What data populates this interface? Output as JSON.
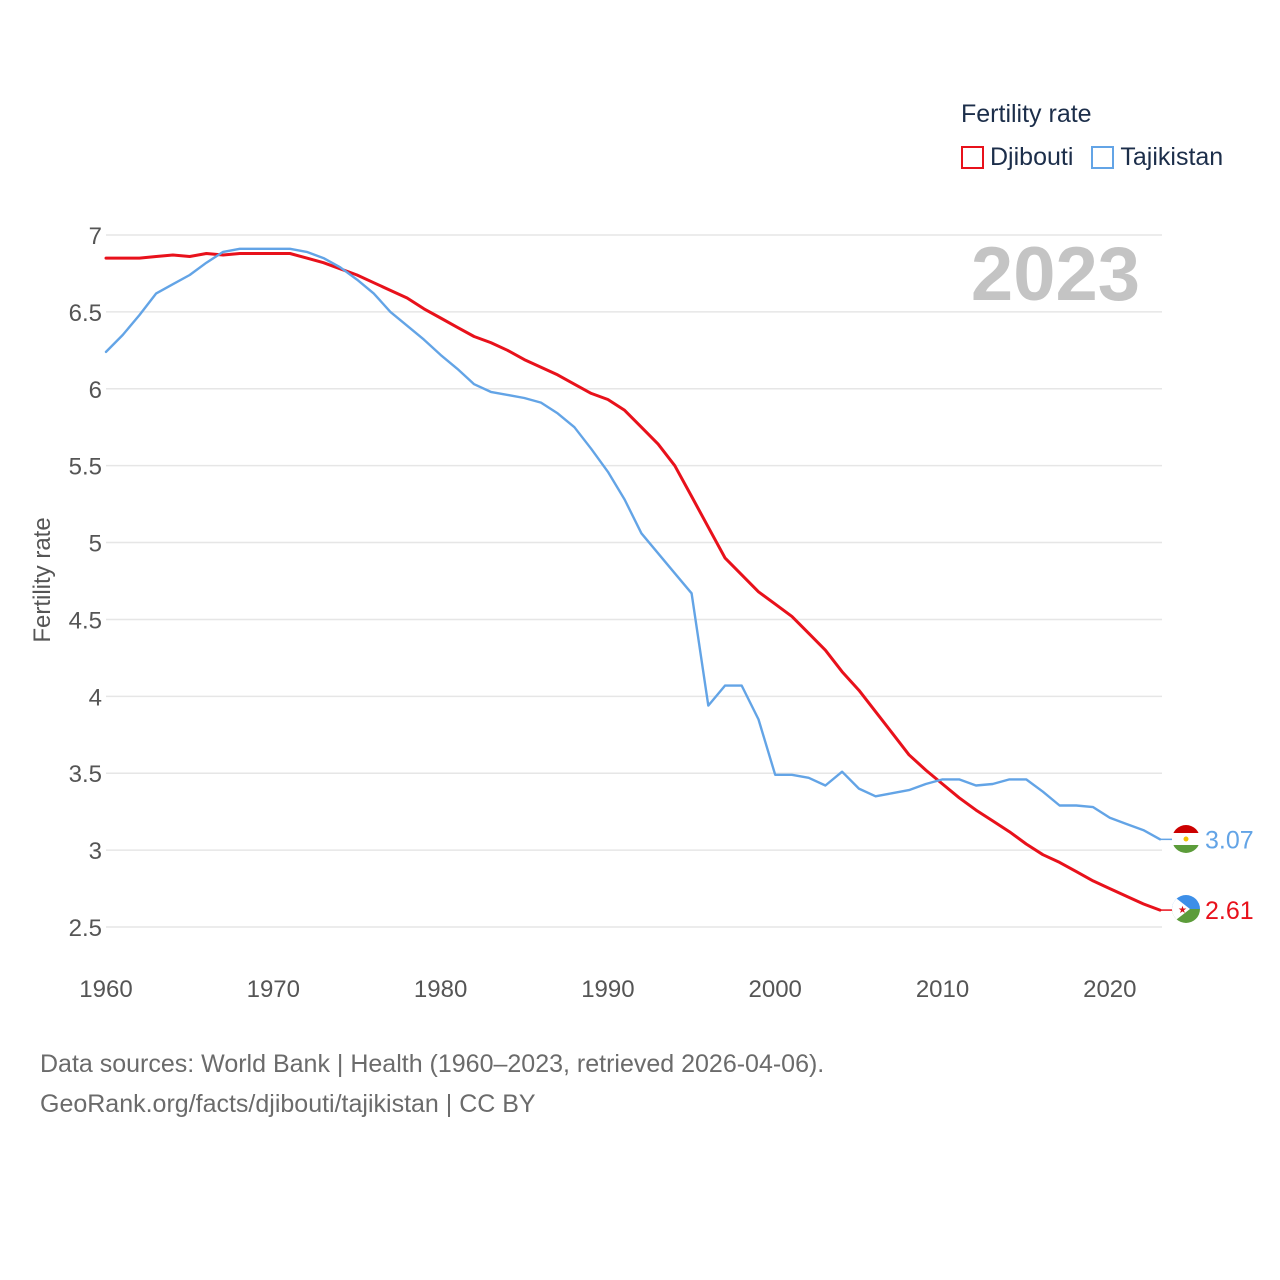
{
  "chart_data": {
    "type": "line",
    "legend_title": "Fertility rate",
    "ylabel": "Fertility rate",
    "xlabel": "",
    "year_label": "2023",
    "xlim": [
      1960,
      2023
    ],
    "ylim": [
      2.5,
      7
    ],
    "x_ticks": [
      1960,
      1970,
      1980,
      1990,
      2000,
      2010,
      2020
    ],
    "y_ticks": [
      2.5,
      3,
      3.5,
      4,
      4.5,
      5,
      5.5,
      6,
      6.5,
      7
    ],
    "x": [
      1960,
      1961,
      1962,
      1963,
      1964,
      1965,
      1966,
      1967,
      1968,
      1969,
      1970,
      1971,
      1972,
      1973,
      1974,
      1975,
      1976,
      1977,
      1978,
      1979,
      1980,
      1981,
      1982,
      1983,
      1984,
      1985,
      1986,
      1987,
      1988,
      1989,
      1990,
      1991,
      1992,
      1993,
      1994,
      1995,
      1996,
      1997,
      1998,
      1999,
      2000,
      2001,
      2002,
      2003,
      2004,
      2005,
      2006,
      2007,
      2008,
      2009,
      2010,
      2011,
      2012,
      2013,
      2014,
      2015,
      2016,
      2017,
      2018,
      2019,
      2020,
      2021,
      2022,
      2023
    ],
    "series": [
      {
        "name": "Djibouti",
        "color": "#e8111b",
        "end_label": "2.61",
        "values": [
          6.85,
          6.85,
          6.85,
          6.86,
          6.87,
          6.86,
          6.88,
          6.87,
          6.88,
          6.88,
          6.88,
          6.88,
          6.85,
          6.82,
          6.78,
          6.74,
          6.69,
          6.64,
          6.59,
          6.52,
          6.46,
          6.4,
          6.34,
          6.3,
          6.25,
          6.19,
          6.14,
          6.09,
          6.03,
          5.97,
          5.93,
          5.86,
          5.75,
          5.64,
          5.5,
          5.3,
          5.1,
          4.9,
          4.79,
          4.68,
          4.6,
          4.52,
          4.41,
          4.3,
          4.16,
          4.04,
          3.9,
          3.76,
          3.62,
          3.52,
          3.43,
          3.34,
          3.26,
          3.19,
          3.12,
          3.04,
          2.97,
          2.92,
          2.86,
          2.8,
          2.75,
          2.7,
          2.65,
          2.61
        ]
      },
      {
        "name": "Tajikistan",
        "color": "#63a4e6",
        "end_label": "3.07",
        "values": [
          6.24,
          6.35,
          6.48,
          6.62,
          6.68,
          6.74,
          6.82,
          6.89,
          6.91,
          6.91,
          6.91,
          6.91,
          6.89,
          6.85,
          6.79,
          6.71,
          6.62,
          6.5,
          6.41,
          6.32,
          6.22,
          6.13,
          6.03,
          5.98,
          5.96,
          5.94,
          5.91,
          5.84,
          5.75,
          5.61,
          5.46,
          5.28,
          5.06,
          4.93,
          4.8,
          4.67,
          3.94,
          4.07,
          4.07,
          3.85,
          3.49,
          3.49,
          3.47,
          3.42,
          3.51,
          3.4,
          3.35,
          3.37,
          3.39,
          3.43,
          3.46,
          3.46,
          3.42,
          3.43,
          3.46,
          3.46,
          3.38,
          3.29,
          3.29,
          3.28,
          3.21,
          3.17,
          3.13,
          3.07
        ]
      }
    ]
  },
  "footer": {
    "line1": "Data sources: World Bank | Health (1960–2023, retrieved 2026-04-06).",
    "line2": "GeoRank.org/facts/djibouti/tajikistan | CC BY"
  },
  "flags": {
    "tajikistan": [
      "#cc0000",
      "#ffffff",
      "#006600"
    ],
    "djibouti": [
      "#6ab2e7",
      "#12ad2b",
      "#ffffff",
      "#d7141a"
    ]
  }
}
